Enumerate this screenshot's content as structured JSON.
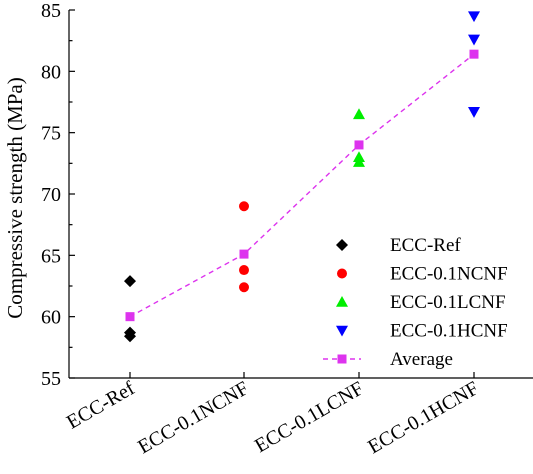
{
  "chart_data": {
    "type": "scatter",
    "xlabel": "",
    "ylabel": "Compressive strength (MPa)",
    "categories": [
      "ECC-Ref",
      "ECC-0.1NCNF",
      "ECC-0.1LCNF",
      "ECC-0.1HCNF"
    ],
    "ylim": [
      55,
      85
    ],
    "yticks": [
      55,
      60,
      65,
      70,
      75,
      80,
      85
    ],
    "grid": false,
    "legend_position": "bottom-right",
    "series": [
      {
        "name": "ECC-Ref",
        "marker": "diamond",
        "color": "#000000",
        "category": "ECC-Ref",
        "values": [
          62.9,
          58.7,
          58.4
        ]
      },
      {
        "name": "ECC-0.1NCNF",
        "marker": "circle",
        "color": "#ff0000",
        "category": "ECC-0.1NCNF",
        "values": [
          69.0,
          63.8,
          62.4
        ]
      },
      {
        "name": "ECC-0.1LCNF",
        "marker": "triangle-up",
        "color": "#00ee00",
        "category": "ECC-0.1LCNF",
        "values": [
          76.5,
          73.0,
          72.6
        ]
      },
      {
        "name": "ECC-0.1HCNF",
        "marker": "triangle-down",
        "color": "#0000ff",
        "category": "ECC-0.1HCNF",
        "values": [
          84.5,
          82.6,
          76.7
        ]
      },
      {
        "name": "Average",
        "marker": "square",
        "line": "dashed",
        "color": "#dd33ee",
        "values": [
          60.0,
          65.1,
          74.0,
          81.4
        ]
      }
    ]
  }
}
